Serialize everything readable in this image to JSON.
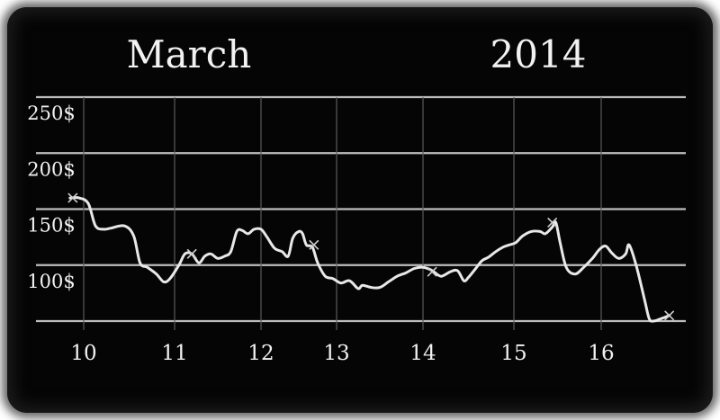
{
  "header": {
    "month": "March",
    "year": "2014"
  },
  "colors": {
    "board": "#050505",
    "chalk": "#e8e8e8",
    "grid": "#bdbdbd",
    "frame_glow": "#6a6a6a"
  },
  "chart_data": {
    "type": "line",
    "title": "",
    "xlabel": "",
    "ylabel": "",
    "x_ticks": [
      "10",
      "11",
      "12",
      "13",
      "14",
      "15",
      "16"
    ],
    "y_ticks": [
      "100$",
      "150$",
      "200$",
      "250$"
    ],
    "xlim": [
      9.5,
      16.85
    ],
    "ylim": [
      50,
      250
    ],
    "grid": true,
    "legend": "none",
    "series": [
      {
        "x": [
          9.85,
          9.95,
          10.05,
          10.13,
          10.22,
          10.3,
          10.45,
          10.55,
          10.62,
          10.7,
          10.8,
          10.88,
          10.95,
          11.05,
          11.12,
          11.2,
          11.28,
          11.35,
          11.42,
          11.5,
          11.58,
          11.65,
          11.72,
          11.78,
          11.85,
          11.92,
          12.0,
          12.08,
          12.18,
          12.28,
          12.36,
          12.42,
          12.5,
          12.55,
          12.6,
          12.68,
          12.75,
          12.85,
          12.95,
          13.05,
          13.15,
          13.25,
          13.3,
          13.4,
          13.5,
          13.6,
          13.7,
          13.8,
          13.9,
          14.0,
          14.08,
          14.12,
          14.2,
          14.3,
          14.38,
          14.45,
          14.5,
          14.58,
          14.65,
          14.72,
          14.8,
          14.88,
          14.95,
          15.02,
          15.1,
          15.2,
          15.3,
          15.36,
          15.44,
          15.48,
          15.53,
          15.6,
          15.7,
          15.8,
          15.9,
          15.98,
          16.05,
          16.12,
          16.2,
          16.28,
          16.32,
          16.4,
          16.5,
          16.55,
          16.6,
          16.68,
          16.78
        ],
        "y": [
          160,
          160,
          155,
          135,
          132,
          133,
          135,
          126,
          102,
          98,
          92,
          85,
          88,
          100,
          110,
          110,
          102,
          108,
          110,
          106,
          108,
          112,
          130,
          131,
          128,
          132,
          132,
          125,
          115,
          112,
          108,
          124,
          130,
          128,
          118,
          116,
          102,
          90,
          88,
          84,
          86,
          79,
          82,
          80,
          80,
          85,
          90,
          93,
          97,
          98,
          96,
          94,
          90,
          94,
          95,
          86,
          89,
          97,
          104,
          107,
          112,
          116,
          118,
          120,
          126,
          130,
          130,
          128,
          134,
          138,
          120,
          98,
          92,
          98,
          106,
          114,
          117,
          111,
          106,
          110,
          118,
          100,
          68,
          52,
          50,
          52,
          55
        ]
      }
    ],
    "markers": [
      {
        "x": 9.88,
        "y": 160
      },
      {
        "x": 11.2,
        "y": 110
      },
      {
        "x": 12.7,
        "y": 118
      },
      {
        "x": 14.1,
        "y": 94
      },
      {
        "x": 15.44,
        "y": 138
      },
      {
        "x": 16.78,
        "y": 55
      }
    ]
  }
}
